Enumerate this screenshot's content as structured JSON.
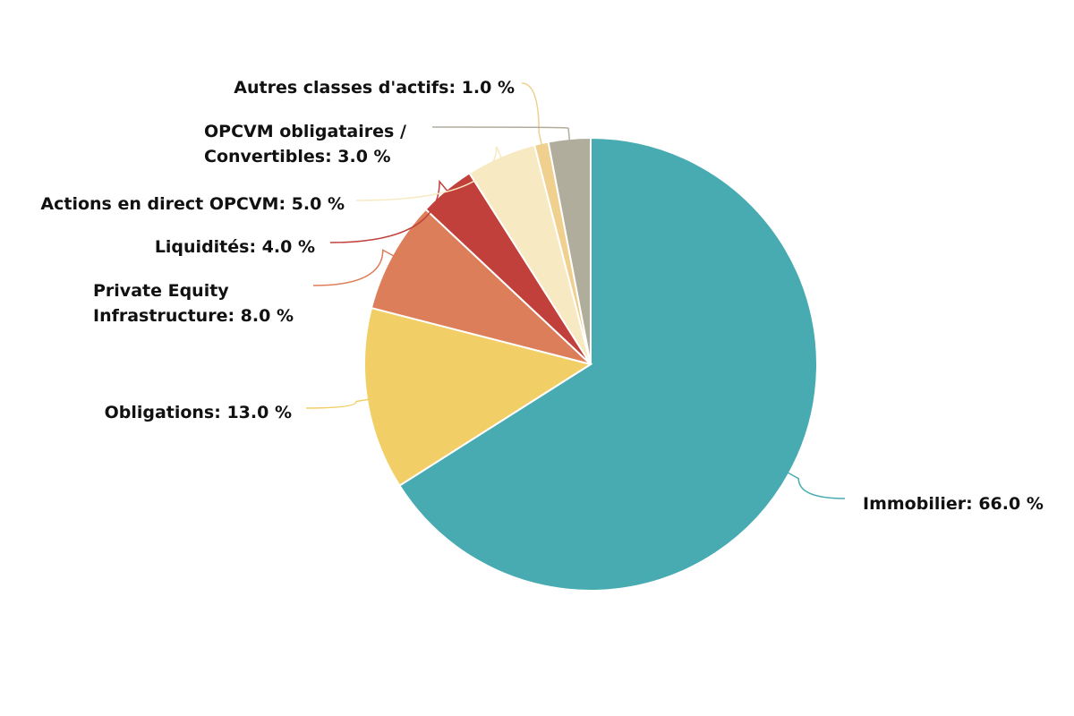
{
  "chart_data": {
    "type": "pie",
    "values": [
      66.0,
      13.0,
      8.0,
      4.0,
      5.0,
      1.0,
      3.0
    ],
    "value_labels": [
      "Immobilier: 66.0 %",
      "Obligations: 13.0 %",
      "Private Equity\nInfrastructure: 8.0 %",
      "Liquidités: 4.0 %",
      "Actions en direct OPCVM: 5.0 %",
      "Autres classes d'actifs: 1.0 %",
      "OPCVM obligataires  /\nConvertibles: 3.0 %"
    ],
    "colors": [
      "#48abb1",
      "#f1cf66",
      "#dd7e5a",
      "#c1403b",
      "#f7e9c2",
      "#efd08f",
      "#b1ad9d"
    ]
  }
}
